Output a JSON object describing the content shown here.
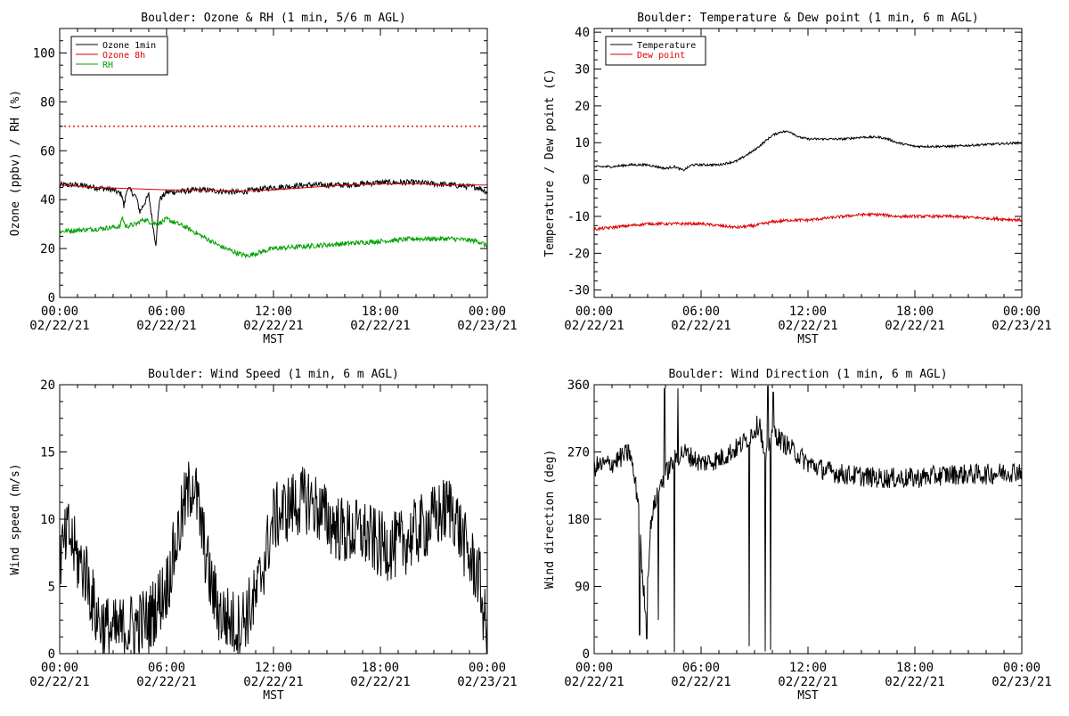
{
  "colors": {
    "black": "#000000",
    "red": "#dd0000",
    "green": "#00a000",
    "background": "#ffffff"
  },
  "chart_data": [
    {
      "type": "line",
      "title": "Boulder: Ozone & RH (1 min, 5/6 m AGL)",
      "xlabel": "MST",
      "ylabel": "Ozone (ppbv) / RH (%)",
      "xlim": [
        0,
        24
      ],
      "ylim": [
        0,
        110
      ],
      "yticks": [
        0,
        20,
        40,
        60,
        80,
        100
      ],
      "xticks": [
        {
          "t": 0,
          "time": "00:00",
          "date": "02/22/21"
        },
        {
          "t": 6,
          "time": "06:00",
          "date": "02/22/21"
        },
        {
          "t": 12,
          "time": "12:00",
          "date": "02/22/21"
        },
        {
          "t": 18,
          "time": "18:00",
          "date": "02/22/21"
        },
        {
          "t": 24,
          "time": "00:00",
          "date": "02/23/21"
        }
      ],
      "legend": "top-left",
      "series": [
        {
          "name": "Ozone 1min",
          "color": "#000000",
          "noise": 1.2,
          "x": [
            0,
            1,
            2,
            3,
            3.5,
            3.6,
            3.8,
            4.3,
            4.5,
            5,
            5.3,
            5.4,
            5.6,
            6,
            8,
            10,
            11,
            12,
            14,
            16,
            18,
            20,
            22,
            23.5,
            24
          ],
          "y": [
            46,
            46,
            45,
            44,
            42,
            37,
            45,
            41,
            35,
            42,
            26,
            22,
            40,
            43,
            44,
            43,
            44,
            45,
            46,
            46,
            47,
            47,
            46,
            45,
            43
          ]
        },
        {
          "name": "Ozone 8h",
          "color": "#dd0000",
          "noise": 0,
          "x": [
            0,
            2,
            4,
            6,
            8,
            10,
            12,
            14,
            16,
            18,
            20,
            22,
            24
          ],
          "y": [
            46,
            45,
            44.5,
            44,
            44,
            43.5,
            44,
            45,
            46,
            46.5,
            46.5,
            46,
            46
          ]
        },
        {
          "name": "RH",
          "color": "#00a000",
          "noise": 1.0,
          "x": [
            0,
            2,
            3.4,
            3.5,
            3.7,
            4.3,
            4.7,
            5,
            5.5,
            6,
            7,
            8,
            9,
            10,
            10.5,
            11,
            12,
            14,
            16,
            18,
            20,
            22,
            23.5,
            24
          ],
          "y": [
            27,
            28,
            29,
            33,
            29,
            30,
            32,
            31,
            30,
            32,
            29,
            25,
            21,
            18,
            17,
            18,
            20,
            21,
            22,
            23,
            24,
            24,
            23,
            21
          ]
        }
      ],
      "reference_line": {
        "y": 70,
        "color": "#dd0000",
        "style": "dotted"
      }
    },
    {
      "type": "line",
      "title": "Boulder: Temperature & Dew point (1 min, 6 m AGL)",
      "xlabel": "MST",
      "ylabel": "Temperature / Dew point (C)",
      "xlim": [
        0,
        24
      ],
      "ylim": [
        -32,
        41
      ],
      "yticks": [
        -30,
        -20,
        -10,
        0,
        10,
        20,
        30,
        40
      ],
      "xticks": [
        {
          "t": 0,
          "time": "00:00",
          "date": "02/22/21"
        },
        {
          "t": 6,
          "time": "06:00",
          "date": "02/22/21"
        },
        {
          "t": 12,
          "time": "12:00",
          "date": "02/22/21"
        },
        {
          "t": 18,
          "time": "18:00",
          "date": "02/22/21"
        },
        {
          "t": 24,
          "time": "00:00",
          "date": "02/23/21"
        }
      ],
      "legend": "top-left",
      "series": [
        {
          "name": "Temperature",
          "color": "#000000",
          "noise": 0.3,
          "x": [
            0,
            1,
            2,
            3,
            4,
            4.5,
            5,
            5.5,
            6,
            7,
            8,
            9,
            10,
            10.5,
            11,
            11.5,
            12,
            13,
            14,
            15,
            16,
            16.5,
            17,
            18,
            20,
            22,
            24
          ],
          "y": [
            3.5,
            3.5,
            4,
            4,
            3,
            3.5,
            2.5,
            4,
            4,
            4,
            5,
            8,
            12,
            13,
            13,
            11.5,
            11,
            11,
            11,
            11.5,
            11.5,
            11,
            10,
            9,
            9,
            9.5,
            10
          ]
        },
        {
          "name": "Dew point",
          "color": "#dd0000",
          "noise": 0.4,
          "x": [
            0,
            1,
            2,
            3,
            4,
            5,
            6,
            7,
            8,
            9,
            10,
            11,
            12,
            13,
            14,
            15,
            16,
            17,
            18,
            20,
            22,
            24
          ],
          "y": [
            -13.5,
            -13,
            -12.5,
            -12,
            -12,
            -12,
            -12,
            -12.5,
            -13,
            -12.5,
            -11.5,
            -11,
            -11,
            -10.5,
            -10,
            -9.5,
            -9.5,
            -10,
            -10,
            -10,
            -10.5,
            -11
          ]
        }
      ]
    },
    {
      "type": "line",
      "title": "Boulder: Wind Speed (1 min, 6 m AGL)",
      "xlabel": "MST",
      "ylabel": "Wind speed (m/s)",
      "xlim": [
        0,
        24
      ],
      "ylim": [
        0,
        20
      ],
      "yticks": [
        0,
        5,
        10,
        15,
        20
      ],
      "xticks": [
        {
          "t": 0,
          "time": "00:00",
          "date": "02/22/21"
        },
        {
          "t": 6,
          "time": "06:00",
          "date": "02/22/21"
        },
        {
          "t": 12,
          "time": "12:00",
          "date": "02/22/21"
        },
        {
          "t": 18,
          "time": "18:00",
          "date": "02/22/21"
        },
        {
          "t": 24,
          "time": "00:00",
          "date": "02/23/21"
        }
      ],
      "legend": "none",
      "series": [
        {
          "name": "",
          "color": "#000000",
          "noise": 2.6,
          "x": [
            0,
            0.5,
            1,
            1.5,
            2,
            2.5,
            3,
            4,
            5,
            6,
            6.5,
            7,
            7.5,
            8,
            8.5,
            9,
            10,
            10.5,
            11,
            11.5,
            12,
            13,
            14,
            15,
            16,
            17,
            18,
            19,
            20,
            21,
            22,
            22.5,
            23,
            23.5,
            24
          ],
          "y": [
            7,
            9,
            7,
            6,
            3,
            2,
            1.5,
            2,
            2.5,
            5,
            8,
            11,
            13,
            9,
            5,
            3,
            2,
            3,
            4,
            7,
            10,
            11,
            11.5,
            10,
            9,
            9,
            8,
            8,
            9,
            10,
            11,
            9,
            7,
            6,
            1
          ]
        }
      ]
    },
    {
      "type": "line",
      "title": "Boulder: Wind Direction (1 min, 6 m AGL)",
      "xlabel": "MST",
      "ylabel": "Wind direction (deg)",
      "xlim": [
        0,
        24
      ],
      "ylim": [
        0,
        360
      ],
      "yticks": [
        0,
        90,
        180,
        270,
        360
      ],
      "xticks": [
        {
          "t": 0,
          "time": "00:00",
          "date": "02/22/21"
        },
        {
          "t": 6,
          "time": "06:00",
          "date": "02/22/21"
        },
        {
          "t": 12,
          "time": "12:00",
          "date": "02/22/21"
        },
        {
          "t": 18,
          "time": "18:00",
          "date": "02/22/21"
        },
        {
          "t": 24,
          "time": "00:00",
          "date": "02/23/21"
        }
      ],
      "legend": "none",
      "series": [
        {
          "name": "",
          "color": "#000000",
          "noise": 14,
          "x": [
            0,
            1,
            2,
            2.5,
            2.7,
            2.9,
            3.2,
            3.6,
            4,
            4.5,
            5,
            6,
            7,
            8,
            8.5,
            9,
            9.3,
            9.6,
            9.8,
            10,
            10.5,
            11,
            12,
            13,
            14,
            16,
            18,
            20,
            22,
            24
          ],
          "y": [
            250,
            255,
            270,
            200,
            100,
            60,
            180,
            220,
            240,
            260,
            270,
            255,
            260,
            275,
            285,
            300,
            310,
            250,
            280,
            300,
            285,
            275,
            255,
            245,
            240,
            235,
            235,
            240,
            240,
            245
          ]
        }
      ],
      "spikes": [
        {
          "t": 2.55,
          "to": 25
        },
        {
          "t": 2.95,
          "to": 20
        },
        {
          "t": 3.6,
          "to": 45
        },
        {
          "t": 3.95,
          "to": 355
        },
        {
          "t": 4.5,
          "to": 2
        },
        {
          "t": 4.7,
          "to": 355
        },
        {
          "t": 8.7,
          "to": 10
        },
        {
          "t": 9.6,
          "to": 3
        },
        {
          "t": 9.75,
          "to": 358
        },
        {
          "t": 9.9,
          "to": 5
        },
        {
          "t": 10.05,
          "to": 350
        }
      ]
    }
  ]
}
